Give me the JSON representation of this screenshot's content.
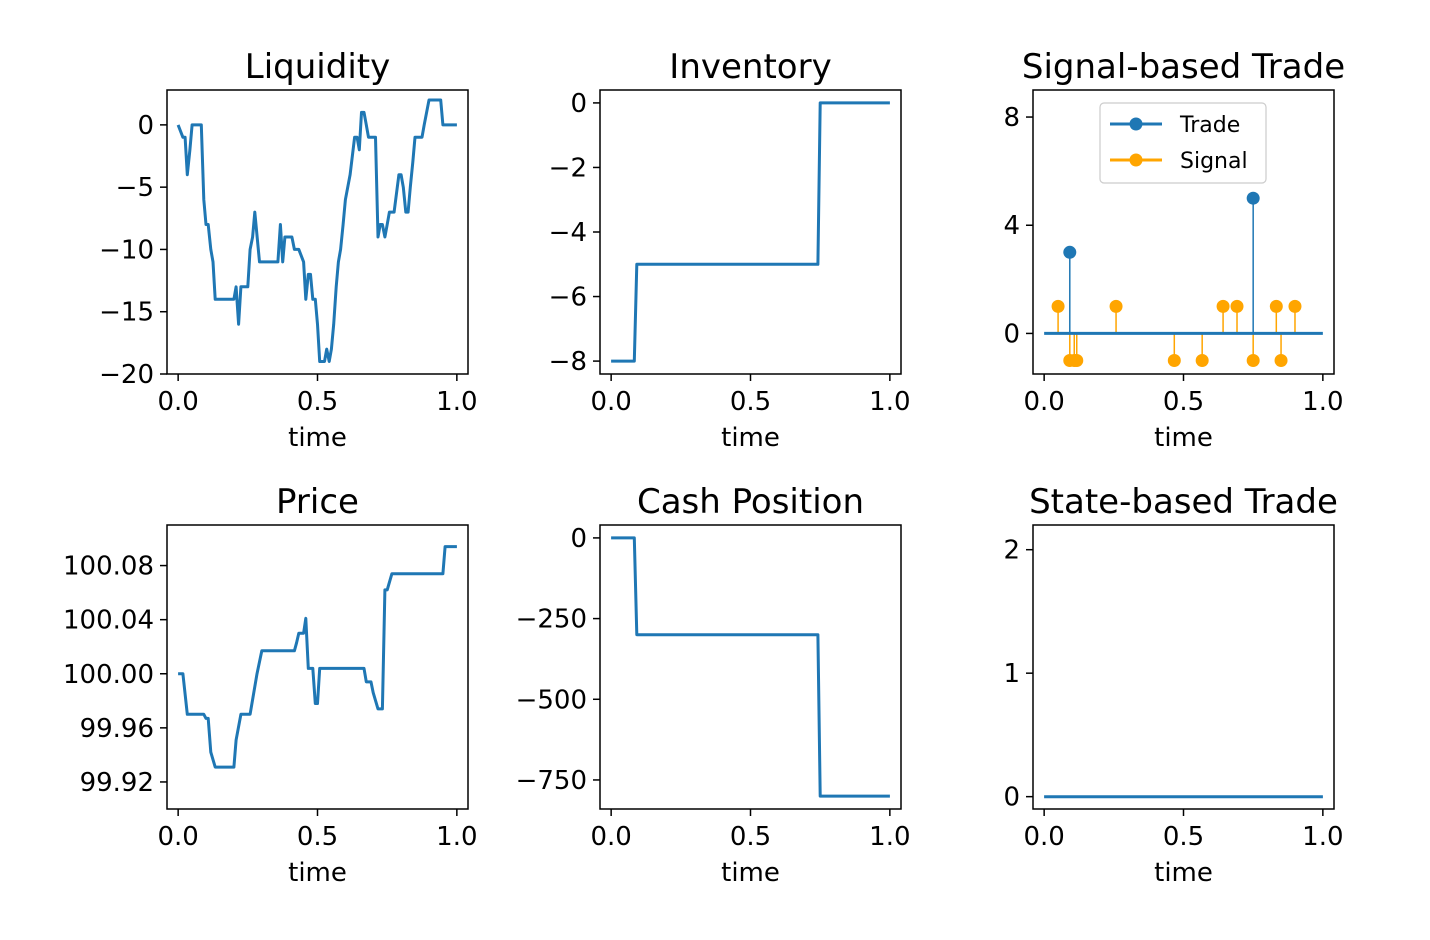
{
  "colors": {
    "primary": "#1f77b4",
    "secondary": "#ffa500",
    "frame": "#000000"
  },
  "chart_data": [
    {
      "type": "line",
      "title": "Liquidity",
      "xlabel": "time",
      "ylabel": "",
      "xlim": [
        -0.04,
        1.04
      ],
      "ylim": [
        -20,
        2.8
      ],
      "xticks": [
        0.0,
        0.5,
        1.0
      ],
      "xtick_labels": [
        "0.0",
        "0.5",
        "1.0"
      ],
      "yticks": [
        0,
        -5,
        -10,
        -15,
        -20
      ],
      "ytick_labels": [
        "0",
        "−5",
        "−10",
        "−15",
        "−20"
      ],
      "series": [
        {
          "color": "#1f77b4",
          "x": [
            0.0,
            0.017,
            0.025,
            0.033,
            0.042,
            0.05,
            0.058,
            0.067,
            0.075,
            0.083,
            0.092,
            0.1,
            0.108,
            0.117,
            0.125,
            0.133,
            0.142,
            0.15,
            0.2,
            0.208,
            0.217,
            0.225,
            0.233,
            0.25,
            0.258,
            0.267,
            0.275,
            0.292,
            0.35,
            0.358,
            0.367,
            0.375,
            0.383,
            0.392,
            0.408,
            0.417,
            0.433,
            0.45,
            0.458,
            0.467,
            0.475,
            0.483,
            0.492,
            0.5,
            0.508,
            0.517,
            0.525,
            0.533,
            0.542,
            0.55,
            0.558,
            0.567,
            0.575,
            0.583,
            0.592,
            0.6,
            0.617,
            0.633,
            0.642,
            0.65,
            0.658,
            0.667,
            0.675,
            0.683,
            0.692,
            0.708,
            0.717,
            0.725,
            0.733,
            0.742,
            0.75,
            0.758,
            0.775,
            0.792,
            0.8,
            0.808,
            0.817,
            0.825,
            0.833,
            0.842,
            0.85,
            0.875,
            0.883,
            0.9,
            0.908,
            0.917,
            0.925,
            0.942,
            0.95,
            0.958,
            1.0
          ],
          "y": [
            0,
            -1,
            -1,
            -4,
            -2,
            0,
            0,
            0,
            0,
            0,
            -6,
            -8,
            -8,
            -10,
            -11,
            -14,
            -14,
            -14,
            -14,
            -13,
            -16,
            -13,
            -13,
            -13,
            -10,
            -9,
            -7,
            -11,
            -11,
            -11,
            -8,
            -11,
            -9,
            -9,
            -9,
            -10,
            -10,
            -11,
            -14,
            -12,
            -12,
            -14,
            -14,
            -16,
            -19,
            -19,
            -19,
            -18,
            -19,
            -18,
            -16,
            -13,
            -11,
            -10,
            -8,
            -6,
            -4,
            -1,
            -1,
            -2,
            1,
            1,
            0,
            -1,
            -1,
            -1,
            -9,
            -8,
            -8,
            -9,
            -8,
            -7,
            -7,
            -4,
            -4,
            -5,
            -7,
            -7,
            -5,
            -3,
            -1,
            -1,
            0,
            2,
            2,
            2,
            2,
            2,
            0,
            0,
            0
          ]
        }
      ]
    },
    {
      "type": "line",
      "title": "Inventory",
      "xlabel": "time",
      "ylabel": "",
      "xlim": [
        -0.04,
        1.04
      ],
      "ylim": [
        -8.4,
        0.4
      ],
      "xticks": [
        0.0,
        0.5,
        1.0
      ],
      "xtick_labels": [
        "0.0",
        "0.5",
        "1.0"
      ],
      "yticks": [
        0,
        -2,
        -4,
        -6,
        -8
      ],
      "ytick_labels": [
        "0",
        "−2",
        "−4",
        "−6",
        "−8"
      ],
      "series": [
        {
          "color": "#1f77b4",
          "x": [
            0.0,
            0.083,
            0.092,
            0.742,
            0.75,
            1.0
          ],
          "y": [
            -8,
            -8,
            -5,
            -5,
            0,
            0
          ]
        }
      ]
    },
    {
      "type": "stem",
      "title": "Signal-based Trade",
      "xlabel": "time",
      "ylabel": "",
      "xlim": [
        -0.04,
        1.04
      ],
      "ylim": [
        -1.5,
        9.0
      ],
      "xticks": [
        0.0,
        0.5,
        1.0
      ],
      "xtick_labels": [
        "0.0",
        "0.5",
        "1.0"
      ],
      "yticks": [
        8,
        4,
        0
      ],
      "ytick_labels": [
        "8",
        "4",
        "0"
      ],
      "legend_position": "top-center",
      "baseline": [
        0.0,
        1.0
      ],
      "series": [
        {
          "name": "Trade",
          "color": "#1f77b4",
          "x": [
            0.092,
            0.75
          ],
          "y": [
            3,
            5
          ]
        },
        {
          "name": "Signal",
          "color": "#ffa500",
          "x": [
            0.05,
            0.092,
            0.108,
            0.117,
            0.258,
            0.467,
            0.567,
            0.642,
            0.692,
            0.75,
            0.833,
            0.85,
            0.9
          ],
          "y": [
            1,
            -1,
            -1,
            -1,
            1,
            -1,
            -1,
            1,
            1,
            -1,
            1,
            -1,
            1
          ]
        }
      ]
    },
    {
      "type": "line",
      "title": "Price",
      "xlabel": "time",
      "ylabel": "",
      "xlim": [
        -0.04,
        1.04
      ],
      "ylim": [
        99.9,
        100.11
      ],
      "xticks": [
        0.0,
        0.5,
        1.0
      ],
      "xtick_labels": [
        "0.0",
        "0.5",
        "1.0"
      ],
      "yticks": [
        100.08,
        100.04,
        100.0,
        99.96,
        99.92
      ],
      "ytick_labels": [
        "100.08",
        "100.04",
        "100.00",
        "99.96",
        "99.92"
      ],
      "series": [
        {
          "color": "#1f77b4",
          "x": [
            0.0,
            0.017,
            0.033,
            0.083,
            0.092,
            0.1,
            0.108,
            0.117,
            0.133,
            0.2,
            0.208,
            0.225,
            0.258,
            0.283,
            0.3,
            0.333,
            0.417,
            0.425,
            0.433,
            0.442,
            0.45,
            0.458,
            0.467,
            0.475,
            0.483,
            0.492,
            0.5,
            0.508,
            0.517,
            0.525,
            0.533,
            0.667,
            0.675,
            0.683,
            0.692,
            0.7,
            0.717,
            0.725,
            0.733,
            0.742,
            0.75,
            0.767,
            0.775,
            0.942,
            0.95,
            0.958,
            1.0
          ],
          "y": [
            100.0,
            100.0,
            99.97,
            99.97,
            99.97,
            99.967,
            99.967,
            99.942,
            99.931,
            99.931,
            99.951,
            99.97,
            99.97,
            100.0,
            100.017,
            100.017,
            100.017,
            100.023,
            100.03,
            100.03,
            100.03,
            100.041,
            100.004,
            100.004,
            100.004,
            99.978,
            99.978,
            100.004,
            100.004,
            100.004,
            100.004,
            100.004,
            99.994,
            99.994,
            99.994,
            99.986,
            99.974,
            99.974,
            99.974,
            100.062,
            100.062,
            100.074,
            100.074,
            100.074,
            100.074,
            100.094,
            100.094
          ]
        }
      ]
    },
    {
      "type": "line",
      "title": "Cash Position",
      "xlabel": "time",
      "ylabel": "",
      "xlim": [
        -0.04,
        1.04
      ],
      "ylim": [
        -840,
        40
      ],
      "xticks": [
        0.0,
        0.5,
        1.0
      ],
      "xtick_labels": [
        "0.0",
        "0.5",
        "1.0"
      ],
      "yticks": [
        0,
        -250,
        -500,
        -750
      ],
      "ytick_labels": [
        "0",
        "−250",
        "−500",
        "−750"
      ],
      "series": [
        {
          "color": "#1f77b4",
          "x": [
            0.0,
            0.083,
            0.092,
            0.742,
            0.75,
            1.0
          ],
          "y": [
            0,
            0,
            -300,
            -300,
            -800,
            -800
          ]
        }
      ]
    },
    {
      "type": "line",
      "title": "State-based Trade",
      "xlabel": "time",
      "ylabel": "",
      "xlim": [
        -0.04,
        1.04
      ],
      "ylim": [
        -0.1,
        2.2
      ],
      "xticks": [
        0.0,
        0.5,
        1.0
      ],
      "xtick_labels": [
        "0.0",
        "0.5",
        "1.0"
      ],
      "yticks": [
        2,
        1,
        0
      ],
      "ytick_labels": [
        "2",
        "1",
        "0"
      ],
      "series": [
        {
          "color": "#1f77b4",
          "x": [
            0.0,
            1.0
          ],
          "y": [
            0,
            0
          ]
        }
      ]
    }
  ]
}
